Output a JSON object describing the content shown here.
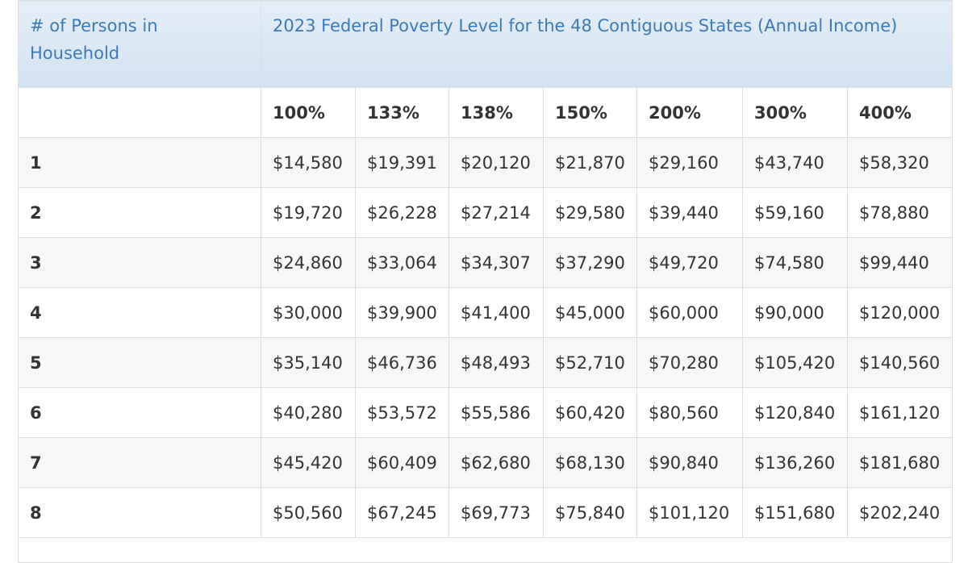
{
  "header": {
    "persons_label": "# of Persons in Household",
    "title": "2023 Federal Poverty Level for the 48 Contiguous States (Annual Income)"
  },
  "percents": [
    "100%",
    "133%",
    "138%",
    "150%",
    "200%",
    "300%",
    "400%"
  ],
  "rows": [
    {
      "persons": "1",
      "values": [
        "$14,580",
        "$19,391",
        "$20,120",
        "$21,870",
        "$29,160",
        "$43,740",
        "$58,320"
      ]
    },
    {
      "persons": "2",
      "values": [
        "$19,720",
        "$26,228",
        "$27,214",
        "$29,580",
        "$39,440",
        "$59,160",
        "$78,880"
      ]
    },
    {
      "persons": "3",
      "values": [
        "$24,860",
        "$33,064",
        "$34,307",
        "$37,290",
        "$49,720",
        "$74,580",
        "$99,440"
      ]
    },
    {
      "persons": "4",
      "values": [
        "$30,000",
        "$39,900",
        "$41,400",
        "$45,000",
        "$60,000",
        "$90,000",
        "$120,000"
      ]
    },
    {
      "persons": "5",
      "values": [
        "$35,140",
        "$46,736",
        "$48,493",
        "$52,710",
        "$70,280",
        "$105,420",
        "$140,560"
      ]
    },
    {
      "persons": "6",
      "values": [
        "$40,280",
        "$53,572",
        "$55,586",
        "$60,420",
        "$80,560",
        "$120,840",
        "$161,120"
      ]
    },
    {
      "persons": "7",
      "values": [
        "$45,420",
        "$60,409",
        "$62,680",
        "$68,130",
        "$90,840",
        "$136,260",
        "$181,680"
      ]
    },
    {
      "persons": "8",
      "values": [
        "$50,560",
        "$67,245",
        "$69,773",
        "$75,840",
        "$101,120",
        "$151,680",
        "$202,240"
      ]
    }
  ]
}
